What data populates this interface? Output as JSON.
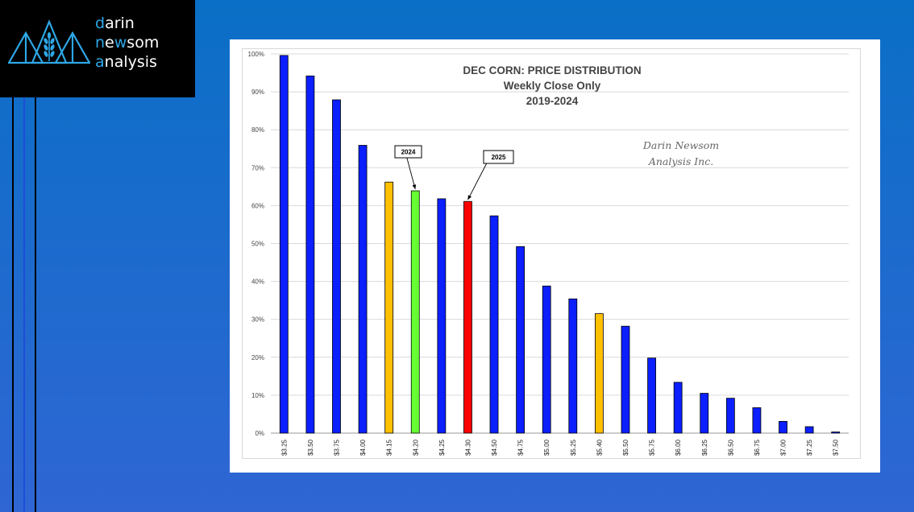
{
  "logo": {
    "line1_accent": "d",
    "line1_rest": "arin",
    "line2_accent": "n",
    "line2_mid": "e",
    "line2_accent2": "w",
    "line2_rest": "som",
    "line3_accent": "a",
    "line3_rest": "nalysis",
    "mark_icon": "mountain-wheat-icon"
  },
  "colors": {
    "background_top": "#0a6fc6",
    "background_bottom": "#2f66d4",
    "bar_blue": "#0b1fff",
    "bar_orange": "#ffc000",
    "bar_green": "#66ff33",
    "bar_red": "#ff0000",
    "logo_accent": "#2ea7e6"
  },
  "chart_data": {
    "type": "bar",
    "title": "DEC CORN: PRICE DISTRIBUTION",
    "subtitle": "Weekly Close Only",
    "subtitle2": "2019-2024",
    "watermark_line1": "Darin Newsom",
    "watermark_line2": "Analysis Inc.",
    "categories": [
      "$3.25",
      "$3.50",
      "$3.75",
      "$4.00",
      "$4.15",
      "$4.20",
      "$4.25",
      "$4.30",
      "$4.50",
      "$4.75",
      "$5.00",
      "$5.25",
      "$5.40",
      "$5.50",
      "$5.75",
      "$6.00",
      "$6.25",
      "$6.50",
      "$6.75",
      "$7.00",
      "$7.25",
      "$7.50"
    ],
    "values": [
      99.6,
      94.2,
      87.9,
      75.9,
      66.2,
      63.9,
      61.8,
      61.1,
      57.3,
      49.2,
      38.8,
      35.4,
      31.5,
      28.2,
      19.8,
      13.4,
      10.5,
      9.2,
      6.7,
      3.1,
      1.7,
      0.3
    ],
    "bar_colors": [
      "blue",
      "blue",
      "blue",
      "blue",
      "orange",
      "green",
      "blue",
      "red",
      "blue",
      "blue",
      "blue",
      "blue",
      "orange",
      "blue",
      "blue",
      "blue",
      "blue",
      "blue",
      "blue",
      "blue",
      "blue",
      "blue"
    ],
    "ylim": [
      0,
      100
    ],
    "yticks": [
      "0%",
      "10%",
      "20%",
      "30%",
      "40%",
      "50%",
      "60%",
      "70%",
      "80%",
      "90%",
      "100%"
    ],
    "grid": true,
    "annotations": [
      {
        "label": "2024",
        "category": "$4.20"
      },
      {
        "label": "2025",
        "category": "$4.30"
      }
    ]
  }
}
